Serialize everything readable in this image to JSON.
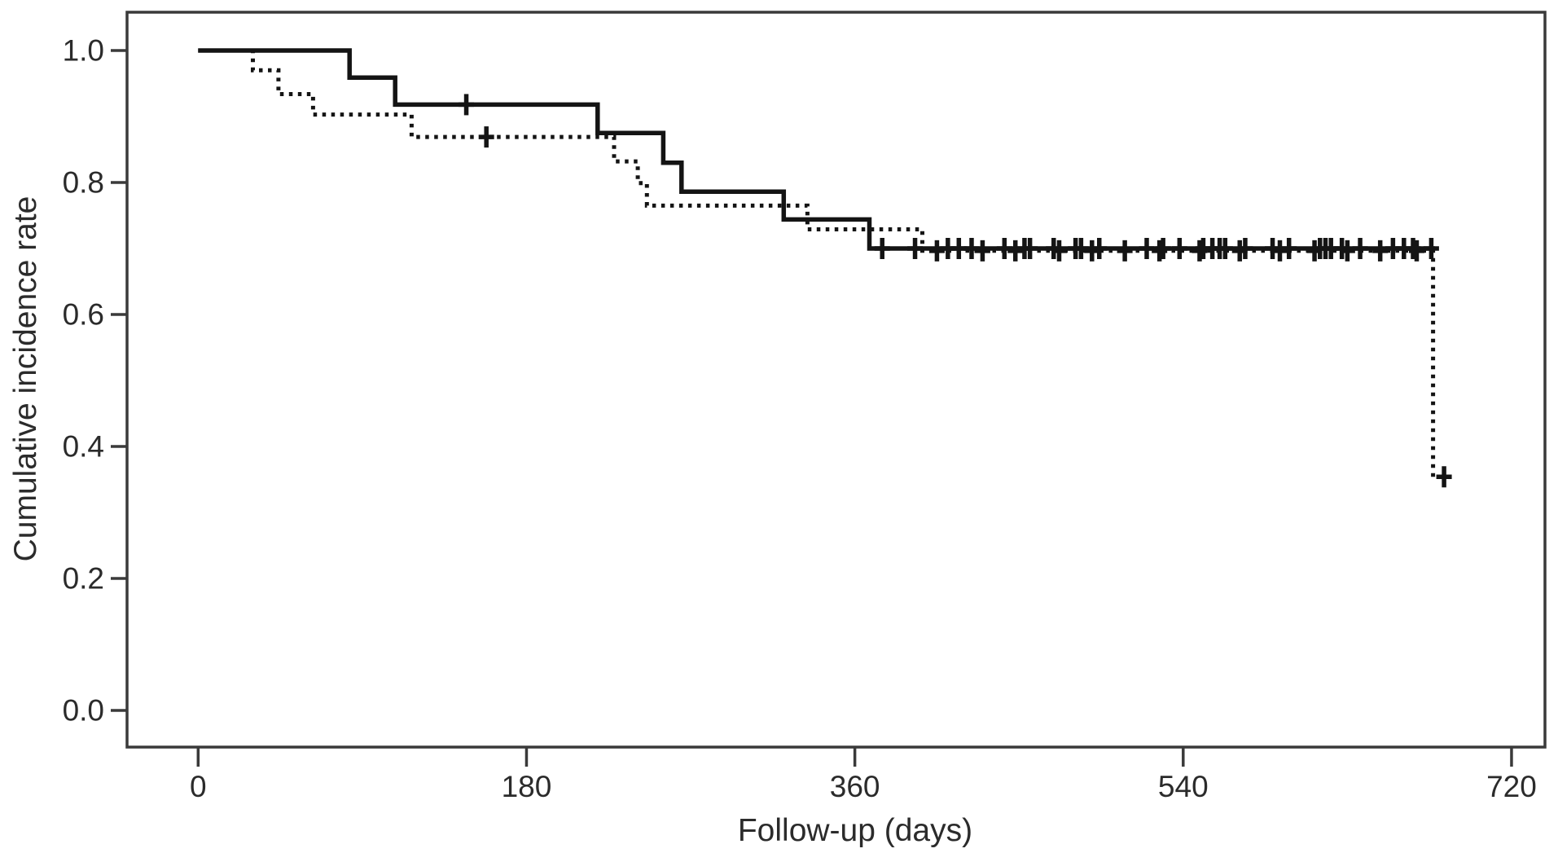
{
  "figure": {
    "kind": "kaplan-meier-cumulative-incidence-plot",
    "background_color": "#ffffff"
  },
  "chart_data": {
    "type": "line",
    "subtype": "step-survival-curve",
    "title": "",
    "xlabel": "Follow-up (days)",
    "ylabel": "Cumulative incidence rate",
    "x_ticks": [
      "0",
      "180",
      "360",
      "540",
      "720"
    ],
    "y_ticks": [
      "1.0",
      "0.8",
      "0.6",
      "0.4",
      "0.2",
      "0.0"
    ],
    "xlim": [
      -39,
      738
    ],
    "ylim": [
      -0.056,
      1.058
    ],
    "grid": false,
    "legend": null,
    "colors": {
      "line": "#141414",
      "axis": "#3a3a3a",
      "text": "#2b2b2b",
      "background": "#ffffff"
    },
    "series": [
      {
        "name": "solid",
        "line_style": "solid",
        "steps": [
          [
            0,
            1.0
          ],
          [
            83,
            0.959
          ],
          [
            108,
            0.918
          ],
          [
            219,
            0.875
          ],
          [
            255,
            0.83
          ],
          [
            265,
            0.786
          ],
          [
            321,
            0.744
          ],
          [
            368,
            0.7
          ]
        ],
        "end_x": 678,
        "censor_marks": [
          [
            147,
            0.918
          ],
          [
            375,
            0.7
          ],
          [
            393,
            0.7
          ],
          [
            411,
            0.7
          ],
          [
            417,
            0.7
          ],
          [
            424,
            0.7
          ],
          [
            442,
            0.7
          ],
          [
            453,
            0.7
          ],
          [
            456,
            0.7
          ],
          [
            469,
            0.7
          ],
          [
            481,
            0.7
          ],
          [
            484,
            0.7
          ],
          [
            494,
            0.7
          ],
          [
            520,
            0.7
          ],
          [
            529,
            0.7
          ],
          [
            538,
            0.7
          ],
          [
            551,
            0.7
          ],
          [
            556,
            0.7
          ],
          [
            560,
            0.7
          ],
          [
            563,
            0.7
          ],
          [
            574,
            0.7
          ],
          [
            589,
            0.7
          ],
          [
            598,
            0.7
          ],
          [
            615,
            0.7
          ],
          [
            618,
            0.7
          ],
          [
            621,
            0.7
          ],
          [
            627,
            0.7
          ],
          [
            637,
            0.7
          ],
          [
            655,
            0.7
          ],
          [
            661,
            0.7
          ],
          [
            666,
            0.7
          ],
          [
            676,
            0.7
          ]
        ]
      },
      {
        "name": "dotted",
        "line_style": "dotted",
        "steps": [
          [
            0,
            1.0
          ],
          [
            30,
            0.97
          ],
          [
            44,
            0.934
          ],
          [
            63,
            0.903
          ],
          [
            117,
            0.869
          ],
          [
            228,
            0.832
          ],
          [
            241,
            0.799
          ],
          [
            246,
            0.765
          ],
          [
            334,
            0.729
          ],
          [
            397,
            0.6965
          ],
          [
            677,
            0.354
          ]
        ],
        "end_x": 684,
        "censor_marks": [
          [
            158,
            0.869
          ],
          [
            405,
            0.6965
          ],
          [
            430,
            0.6965
          ],
          [
            448,
            0.6965
          ],
          [
            472,
            0.6965
          ],
          [
            490,
            0.6965
          ],
          [
            508,
            0.6965
          ],
          [
            527,
            0.6965
          ],
          [
            549,
            0.6965
          ],
          [
            571,
            0.6965
          ],
          [
            593,
            0.6965
          ],
          [
            612,
            0.6965
          ],
          [
            630,
            0.6965
          ],
          [
            648,
            0.6965
          ],
          [
            668,
            0.6965
          ],
          [
            683,
            0.354
          ]
        ]
      }
    ]
  }
}
